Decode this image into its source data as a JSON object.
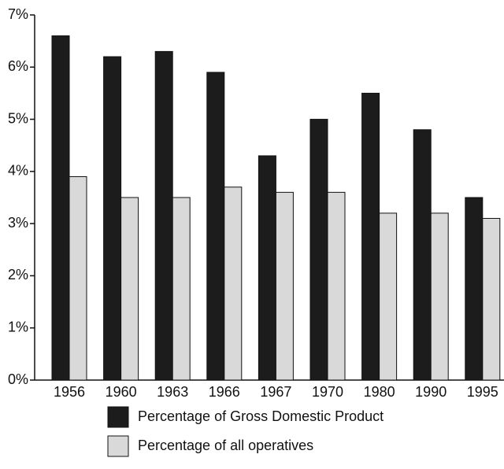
{
  "chart_data": {
    "type": "bar",
    "categories": [
      "1956",
      "1960",
      "1963",
      "1966",
      "1967",
      "1970",
      "1980",
      "1990",
      "1995"
    ],
    "series": [
      {
        "name": "Percentage of Gross Domestic Product",
        "color": "#1c1c1c",
        "values": [
          6.6,
          6.2,
          6.3,
          5.9,
          4.3,
          5.0,
          5.5,
          4.8,
          3.5
        ]
      },
      {
        "name": "Percentage of all operatives",
        "color": "#d9d9d9",
        "values": [
          3.9,
          3.5,
          3.5,
          3.7,
          3.6,
          3.6,
          3.2,
          3.2,
          3.1
        ]
      }
    ],
    "ylim": [
      0,
      7
    ],
    "yticks": [
      {
        "value": 0,
        "label": "0%"
      },
      {
        "value": 1,
        "label": "1%"
      },
      {
        "value": 2,
        "label": "2%"
      },
      {
        "value": 3,
        "label": "3%"
      },
      {
        "value": 4,
        "label": "4%"
      },
      {
        "value": 5,
        "label": "5%"
      },
      {
        "value": 6,
        "label": "6%"
      },
      {
        "value": 7,
        "label": "7%"
      }
    ]
  }
}
